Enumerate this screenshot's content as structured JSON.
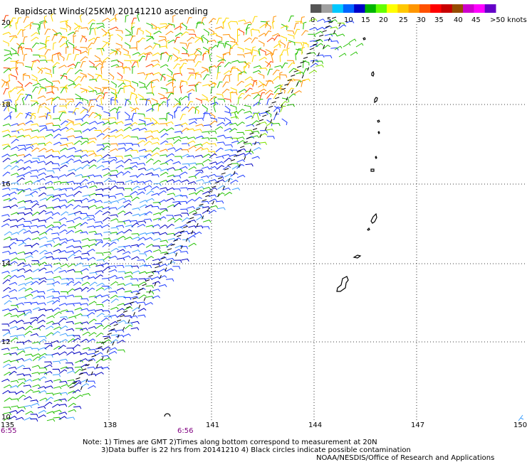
{
  "header": {
    "title": "Rapidscat Winds(25KM) 20141210 ascending"
  },
  "legend": {
    "unit": "knots",
    "ticks": [
      "0",
      "5",
      "10",
      "15",
      "20",
      "25",
      "30",
      "35",
      "40",
      "45",
      ">50 knots"
    ],
    "colors": [
      "#555555",
      "#a0a0a0",
      "#00c8ff",
      "#0064ff",
      "#0000c8",
      "#00b400",
      "#64ff00",
      "#ffff00",
      "#ffc800",
      "#ff9600",
      "#ff5000",
      "#ff0000",
      "#c80000",
      "#964b00",
      "#cc00cc",
      "#ff00ff",
      "#6400c8"
    ]
  },
  "map": {
    "lat_labels": [
      "20",
      "18",
      "16",
      "14",
      "12",
      "10"
    ],
    "lon_labels": [
      "135",
      "138",
      "141",
      "144",
      "147",
      "150"
    ],
    "time_labels": [
      "6:55",
      "6:56"
    ],
    "wind_colors": {
      "blue": "#1e3cff",
      "darkblue": "#0000c0",
      "cyan": "#3fa0ff",
      "green": "#22c000",
      "lime": "#7ee000",
      "yellow": "#ffd700",
      "orange": "#ff9000",
      "red": "#ff4000",
      "black": "#000000"
    }
  },
  "footer": {
    "line1": "Note: 1) Times are GMT 2)Times along bottom correspond to measurement at 20N",
    "line2": "3)Data buffer is 22 hrs from 20141210 4) Black circles indicate possible contamination",
    "line3": "NOAA/NESDIS/Office of Research and Applications"
  }
}
